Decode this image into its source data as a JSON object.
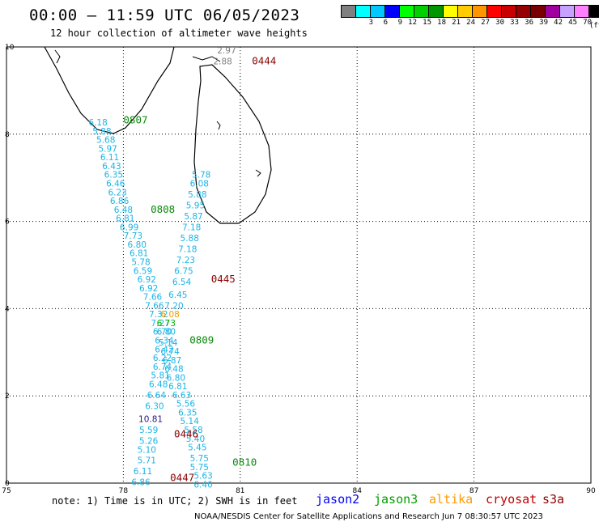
{
  "title": "00:00 – 11:59 UTC 06/05/2023",
  "subtitle": "12 hour collection of altimeter wave heights",
  "colorbar": {
    "unit": "(ft)",
    "bins": [
      {
        "label": "",
        "color": "#808080"
      },
      {
        "label": "3",
        "color": "#00ffff"
      },
      {
        "label": "6",
        "color": "#00c8ff"
      },
      {
        "label": "9",
        "color": "#0000ff"
      },
      {
        "label": "12",
        "color": "#00ff00"
      },
      {
        "label": "15",
        "color": "#00d000"
      },
      {
        "label": "18",
        "color": "#009600"
      },
      {
        "label": "21",
        "color": "#ffff00"
      },
      {
        "label": "24",
        "color": "#ffcc00"
      },
      {
        "label": "27",
        "color": "#ff9600"
      },
      {
        "label": "30",
        "color": "#ff0000"
      },
      {
        "label": "33",
        "color": "#c80000"
      },
      {
        "label": "36",
        "color": "#960000"
      },
      {
        "label": "39",
        "color": "#780000"
      },
      {
        "label": "42",
        "color": "#a000a0"
      },
      {
        "label": "45",
        "color": "#c8a0ff"
      },
      {
        "label": "70",
        "color": "#ff80ff"
      },
      {
        "label": "",
        "color": "#000000"
      }
    ]
  },
  "axes": {
    "x_ticks": [
      "75",
      "78",
      "81",
      "84",
      "87",
      "90"
    ],
    "y_ticks": [
      "0",
      "2",
      "4",
      "6",
      "8",
      "10"
    ],
    "x_range": [
      75,
      90
    ],
    "y_range": [
      0,
      10
    ]
  },
  "colors": {
    "cyan_sat": "#1ab4e6",
    "jason3": "#0a8a0a",
    "cryosat": "#8b0000",
    "gray_obs": "#808080",
    "s3a_obs": "#2a1a80"
  },
  "time_labels": [
    {
      "text": "0444",
      "lon": 81.3,
      "lat": 9.6,
      "color": "#8b0000"
    },
    {
      "text": "0807",
      "lon": 78.0,
      "lat": 8.25,
      "color": "#0a8a0a"
    },
    {
      "text": "0808",
      "lon": 78.7,
      "lat": 6.2,
      "color": "#0a8a0a"
    },
    {
      "text": "0445",
      "lon": 80.25,
      "lat": 4.6,
      "color": "#8b0000"
    },
    {
      "text": "0809",
      "lon": 79.7,
      "lat": 3.2,
      "color": "#0a8a0a"
    },
    {
      "text": "0446",
      "lon": 79.3,
      "lat": 1.05,
      "color": "#8b0000"
    },
    {
      "text": "0810",
      "lon": 80.8,
      "lat": 0.4,
      "color": "#0a8a0a"
    },
    {
      "text": "0447",
      "lon": 79.2,
      "lat": 0.05,
      "color": "#8b0000"
    }
  ],
  "observations": [
    {
      "v": "2.97",
      "lon": 80.65,
      "lat": 9.85,
      "c": "#808080"
    },
    {
      "v": "2.88",
      "lon": 80.55,
      "lat": 9.6,
      "c": "#808080"
    },
    {
      "v": "6.18",
      "lon": 77.35,
      "lat": 8.2,
      "c": "#1ab4e6"
    },
    {
      "v": "5.88",
      "lon": 77.45,
      "lat": 8.0,
      "c": "#1ab4e6"
    },
    {
      "v": "5.68",
      "lon": 77.55,
      "lat": 7.8,
      "c": "#1ab4e6"
    },
    {
      "v": "5.97",
      "lon": 77.6,
      "lat": 7.6,
      "c": "#1ab4e6"
    },
    {
      "v": "6.11",
      "lon": 77.65,
      "lat": 7.4,
      "c": "#1ab4e6"
    },
    {
      "v": "6.43",
      "lon": 77.7,
      "lat": 7.2,
      "c": "#1ab4e6"
    },
    {
      "v": "6.35",
      "lon": 77.75,
      "lat": 7.0,
      "c": "#1ab4e6"
    },
    {
      "v": "6.46",
      "lon": 77.8,
      "lat": 6.8,
      "c": "#1ab4e6"
    },
    {
      "v": "6.23",
      "lon": 77.85,
      "lat": 6.6,
      "c": "#1ab4e6"
    },
    {
      "v": "6.86",
      "lon": 77.9,
      "lat": 6.4,
      "c": "#1ab4e6"
    },
    {
      "v": "6.48",
      "lon": 78.0,
      "lat": 6.2,
      "c": "#1ab4e6"
    },
    {
      "v": "6.81",
      "lon": 78.05,
      "lat": 6.0,
      "c": "#1ab4e6"
    },
    {
      "v": "6.99",
      "lon": 78.15,
      "lat": 5.8,
      "c": "#1ab4e6"
    },
    {
      "v": "7.73",
      "lon": 78.25,
      "lat": 5.6,
      "c": "#1ab4e6"
    },
    {
      "v": "6.80",
      "lon": 78.35,
      "lat": 5.4,
      "c": "#1ab4e6"
    },
    {
      "v": "6.81",
      "lon": 78.4,
      "lat": 5.2,
      "c": "#1ab4e6"
    },
    {
      "v": "5.78",
      "lon": 78.45,
      "lat": 5.0,
      "c": "#1ab4e6"
    },
    {
      "v": "6.59",
      "lon": 78.5,
      "lat": 4.8,
      "c": "#1ab4e6"
    },
    {
      "v": "6.92",
      "lon": 78.6,
      "lat": 4.6,
      "c": "#1ab4e6"
    },
    {
      "v": "6.92",
      "lon": 78.65,
      "lat": 4.4,
      "c": "#1ab4e6"
    },
    {
      "v": "7.66",
      "lon": 78.75,
      "lat": 4.2,
      "c": "#1ab4e6"
    },
    {
      "v": "7.66",
      "lon": 78.8,
      "lat": 4.0,
      "c": "#1ab4e6"
    },
    {
      "v": "7.32",
      "lon": 78.9,
      "lat": 3.8,
      "c": "#1ab4e6"
    },
    {
      "v": "7.27",
      "lon": 78.95,
      "lat": 3.6,
      "c": "#1ab4e6"
    },
    {
      "v": "6.70",
      "lon": 79.0,
      "lat": 3.4,
      "c": "#1ab4e6"
    },
    {
      "v": "6.34",
      "lon": 79.05,
      "lat": 3.2,
      "c": "#1ab4e6"
    },
    {
      "v": "6.42",
      "lon": 79.05,
      "lat": 3.0,
      "c": "#1ab4e6"
    },
    {
      "v": "6.22",
      "lon": 79.0,
      "lat": 2.8,
      "c": "#1ab4e6"
    },
    {
      "v": "6.74",
      "lon": 79.0,
      "lat": 2.6,
      "c": "#1ab4e6"
    },
    {
      "v": "5.81",
      "lon": 78.95,
      "lat": 2.4,
      "c": "#1ab4e6"
    },
    {
      "v": "6.48",
      "lon": 78.9,
      "lat": 2.2,
      "c": "#1ab4e6"
    },
    {
      "v": "6.64",
      "lon": 78.85,
      "lat": 1.95,
      "c": "#1ab4e6"
    },
    {
      "v": "6.30",
      "lon": 78.8,
      "lat": 1.7,
      "c": "#1ab4e6"
    },
    {
      "v": "10.81",
      "lon": 78.7,
      "lat": 1.4,
      "c": "#2a1a80"
    },
    {
      "v": "5.59",
      "lon": 78.65,
      "lat": 1.15,
      "c": "#1ab4e6"
    },
    {
      "v": "5.26",
      "lon": 78.65,
      "lat": 0.9,
      "c": "#1ab4e6"
    },
    {
      "v": "5.10",
      "lon": 78.6,
      "lat": 0.7,
      "c": "#1ab4e6"
    },
    {
      "v": "5.71",
      "lon": 78.6,
      "lat": 0.45,
      "c": "#1ab4e6"
    },
    {
      "v": "6.11",
      "lon": 78.5,
      "lat": 0.2,
      "c": "#1ab4e6"
    },
    {
      "v": "6.86",
      "lon": 78.45,
      "lat": -0.05,
      "c": "#1ab4e6"
    },
    {
      "v": "5.78",
      "lon": 80.0,
      "lat": 7.0,
      "c": "#1ab4e6"
    },
    {
      "v": "6.08",
      "lon": 79.95,
      "lat": 6.8,
      "c": "#1ab4e6"
    },
    {
      "v": "5.88",
      "lon": 79.9,
      "lat": 6.55,
      "c": "#1ab4e6"
    },
    {
      "v": "5.95",
      "lon": 79.85,
      "lat": 6.3,
      "c": "#1ab4e6"
    },
    {
      "v": "5.87",
      "lon": 79.8,
      "lat": 6.05,
      "c": "#1ab4e6"
    },
    {
      "v": "7.18",
      "lon": 79.75,
      "lat": 5.8,
      "c": "#1ab4e6"
    },
    {
      "v": "5.88",
      "lon": 79.7,
      "lat": 5.55,
      "c": "#1ab4e6"
    },
    {
      "v": "7.18",
      "lon": 79.65,
      "lat": 5.3,
      "c": "#1ab4e6"
    },
    {
      "v": "7.23",
      "lon": 79.6,
      "lat": 5.05,
      "c": "#1ab4e6"
    },
    {
      "v": "6.75",
      "lon": 79.55,
      "lat": 4.8,
      "c": "#1ab4e6"
    },
    {
      "v": "6.54",
      "lon": 79.5,
      "lat": 4.55,
      "c": "#1ab4e6"
    },
    {
      "v": "6.45",
      "lon": 79.4,
      "lat": 4.25,
      "c": "#1ab4e6"
    },
    {
      "v": "7.20",
      "lon": 79.3,
      "lat": 4.0,
      "c": "#1ab4e6"
    },
    {
      "v": "6.08",
      "lon": 79.2,
      "lat": 3.8,
      "c": "#e8a000"
    },
    {
      "v": "6.73",
      "lon": 79.1,
      "lat": 3.6,
      "c": "#00b000"
    },
    {
      "v": "6.80",
      "lon": 79.1,
      "lat": 3.4,
      "c": "#1ab4e6"
    },
    {
      "v": "5.14",
      "lon": 79.15,
      "lat": 3.15,
      "c": "#1ab4e6"
    },
    {
      "v": "6.74",
      "lon": 79.2,
      "lat": 2.95,
      "c": "#1ab4e6"
    },
    {
      "v": "6.87",
      "lon": 79.25,
      "lat": 2.75,
      "c": "#1ab4e6"
    },
    {
      "v": "6.48",
      "lon": 79.3,
      "lat": 2.55,
      "c": "#1ab4e6"
    },
    {
      "v": "6.80",
      "lon": 79.35,
      "lat": 2.35,
      "c": "#1ab4e6"
    },
    {
      "v": "6.81",
      "lon": 79.4,
      "lat": 2.15,
      "c": "#1ab4e6"
    },
    {
      "v": "6.63",
      "lon": 79.5,
      "lat": 1.95,
      "c": "#1ab4e6"
    },
    {
      "v": "5.56",
      "lon": 79.6,
      "lat": 1.75,
      "c": "#1ab4e6"
    },
    {
      "v": "6.35",
      "lon": 79.65,
      "lat": 1.55,
      "c": "#1ab4e6"
    },
    {
      "v": "5.14",
      "lon": 79.7,
      "lat": 1.35,
      "c": "#1ab4e6"
    },
    {
      "v": "5.58",
      "lon": 79.8,
      "lat": 1.15,
      "c": "#1ab4e6"
    },
    {
      "v": "5.40",
      "lon": 79.85,
      "lat": 0.95,
      "c": "#1ab4e6"
    },
    {
      "v": "5.45",
      "lon": 79.9,
      "lat": 0.75,
      "c": "#1ab4e6"
    },
    {
      "v": "5.75",
      "lon": 79.95,
      "lat": 0.5,
      "c": "#1ab4e6"
    },
    {
      "v": "5.75",
      "lon": 79.95,
      "lat": 0.3,
      "c": "#1ab4e6"
    },
    {
      "v": "5.63",
      "lon": 80.05,
      "lat": 0.1,
      "c": "#1ab4e6"
    },
    {
      "v": "6.40",
      "lon": 80.05,
      "lat": -0.1,
      "c": "#1ab4e6"
    }
  ],
  "footer": {
    "note": "note: 1) Time is in UTC; 2) SWH is in feet",
    "credit": "NOAA/NESDIS Center for Satellite Applications and Research   Jun  7 08:30:57 UTC 2023",
    "satellites": [
      {
        "name": "jason2",
        "color": "#0000ff"
      },
      {
        "name": "jason3",
        "color": "#00a000"
      },
      {
        "name": "altika",
        "color": "#ff9900"
      },
      {
        "name": "cryosat",
        "color": "#c00000"
      },
      {
        "name": "s3a",
        "color": "#8b0000"
      }
    ]
  }
}
